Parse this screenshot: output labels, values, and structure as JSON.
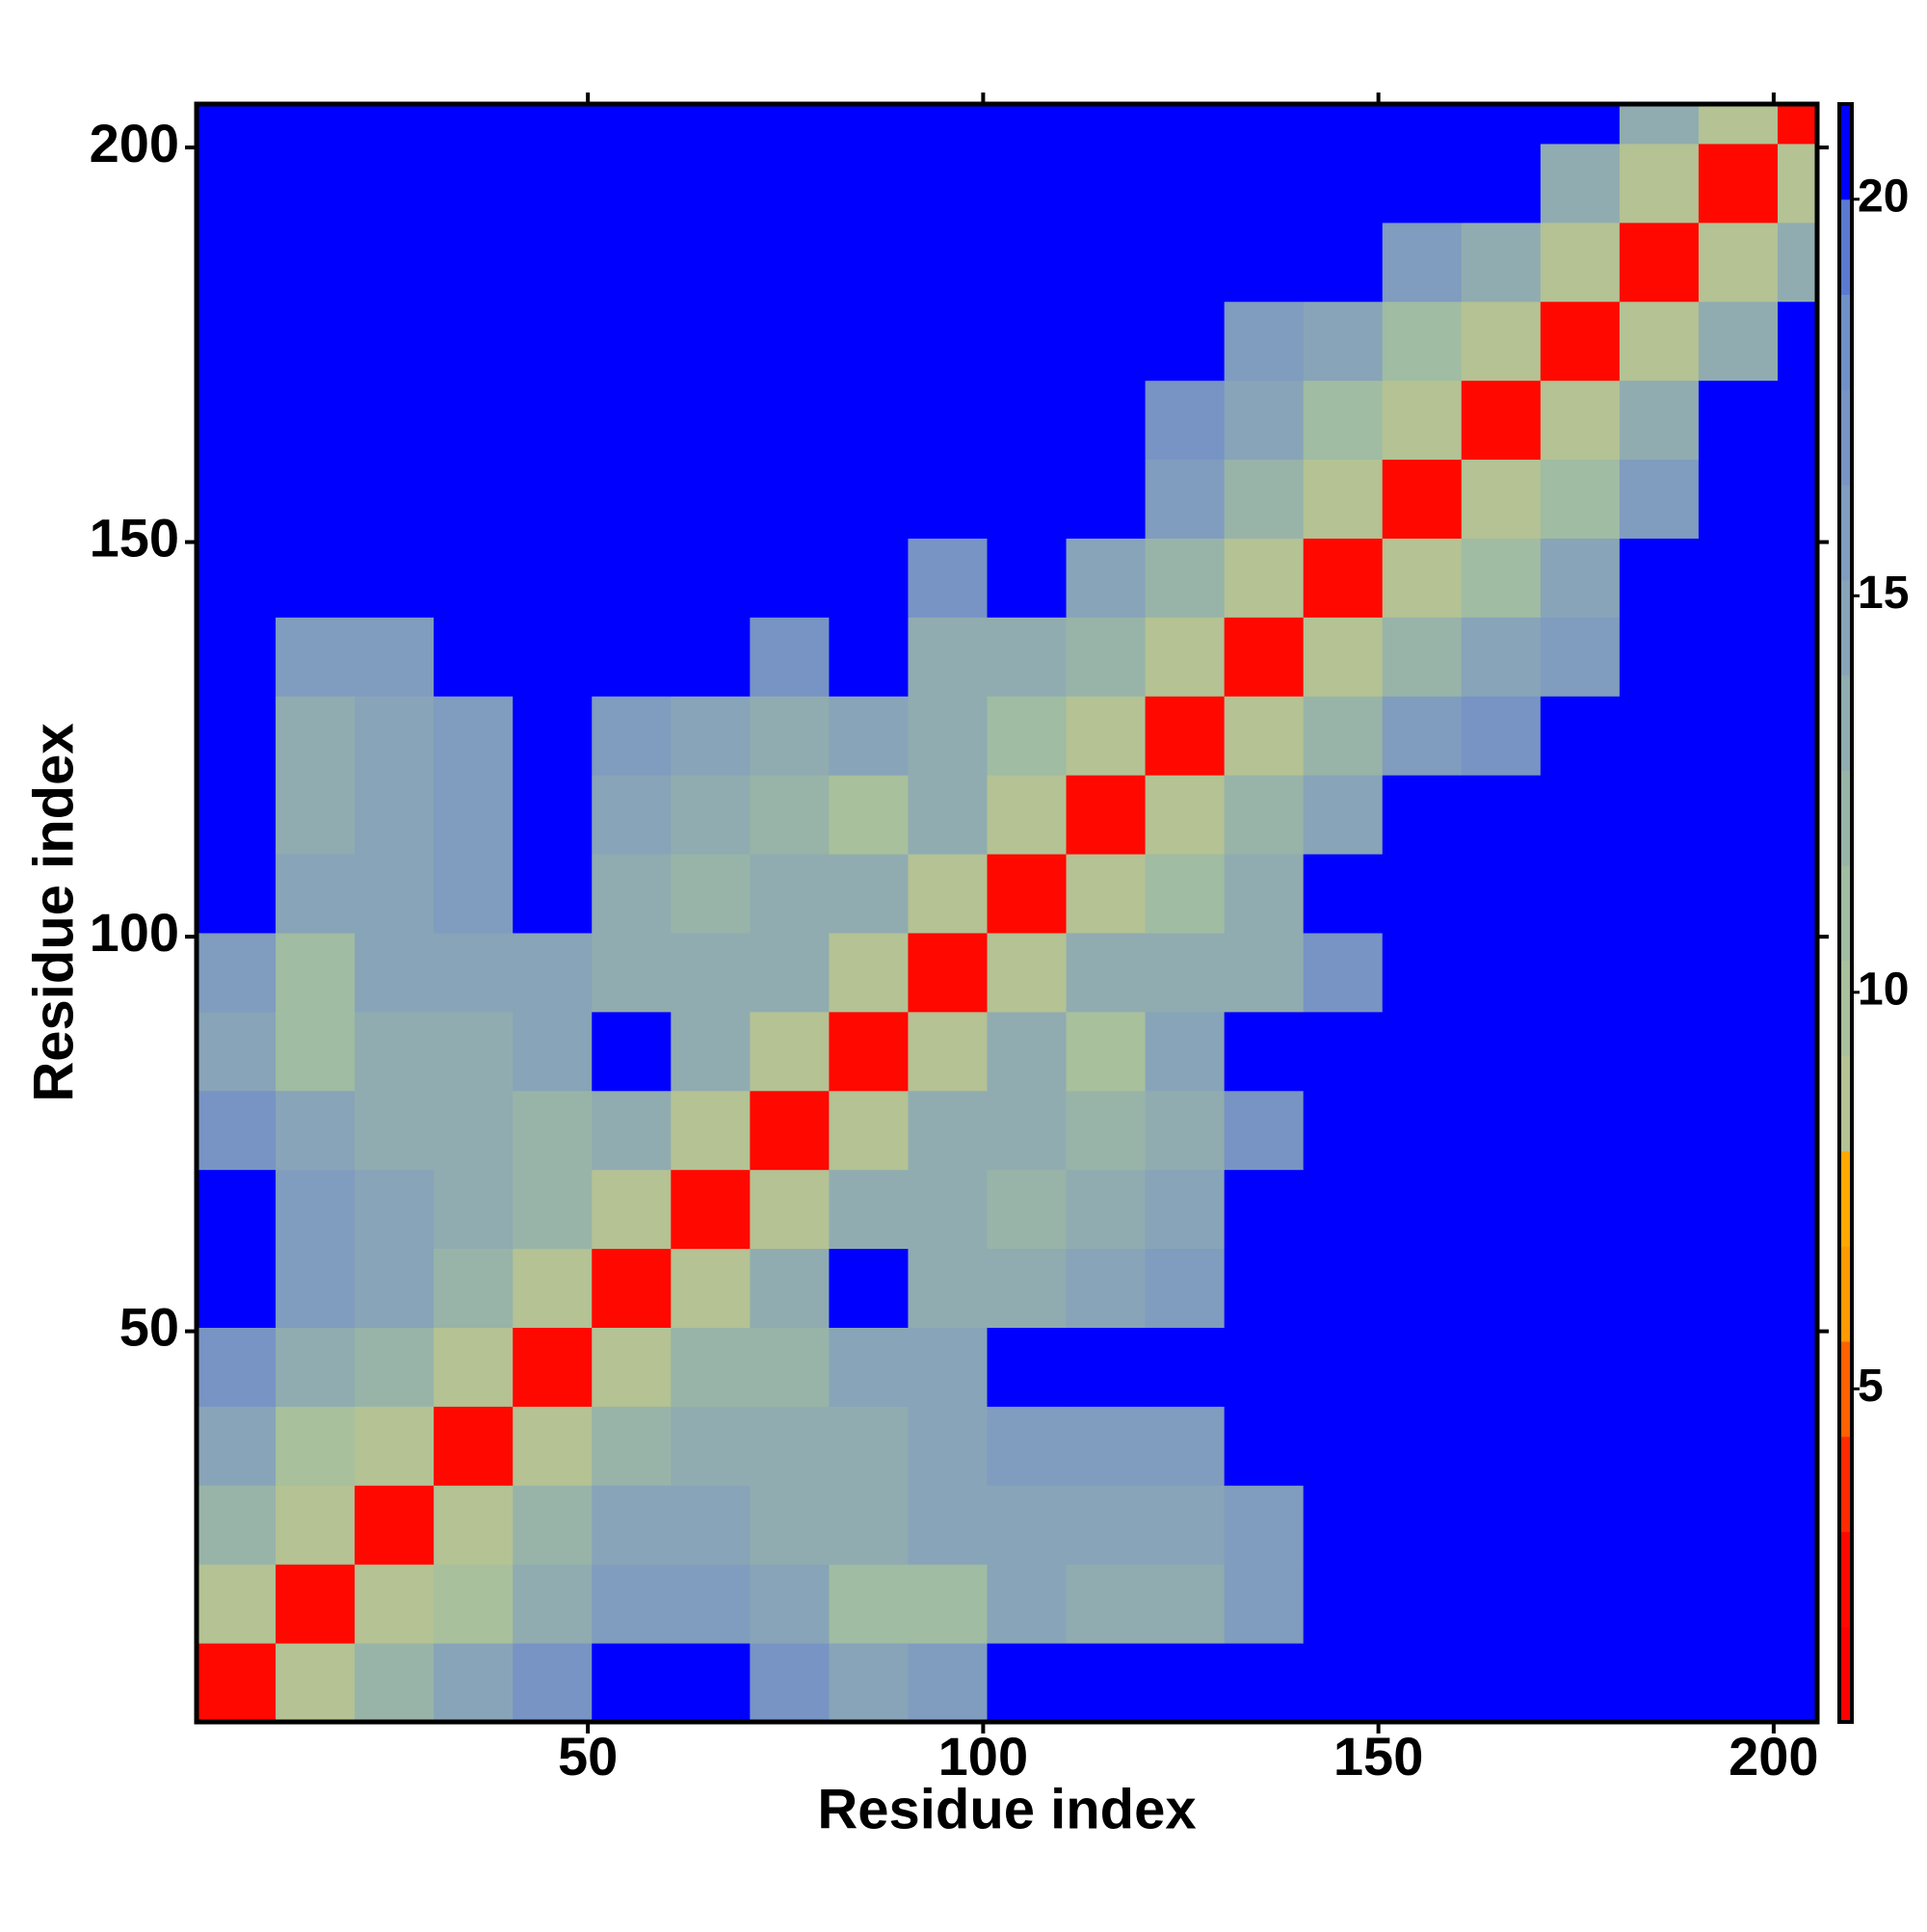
{
  "chart_data": {
    "type": "heatmap",
    "x_label": "Residue index",
    "y_label": "Residue index",
    "xlim": [
      0.5,
      205.5
    ],
    "ylim": [
      0.5,
      205.5
    ],
    "xticks": [
      50,
      100,
      150,
      200
    ],
    "yticks": [
      50,
      100,
      150,
      200
    ],
    "x_edges": [
      0.5,
      10.5,
      20.5,
      30.5,
      40.5,
      50.5,
      60.5,
      70.5,
      80.5,
      90.5,
      100.5,
      110.5,
      120.5,
      130.5,
      140.5,
      150.5,
      160.5,
      170.5,
      180.5,
      190.5,
      200.5,
      205.5
    ],
    "y_edges": [
      0.5,
      10.5,
      20.5,
      30.5,
      40.5,
      50.5,
      60.5,
      70.5,
      80.5,
      90.5,
      100.5,
      110.5,
      120.5,
      130.5,
      140.5,
      150.5,
      160.5,
      170.5,
      180.5,
      190.5,
      200.5,
      205.5
    ],
    "zlim": [
      0.8,
      21.2
    ],
    "zticks": [
      5,
      10,
      15,
      20
    ],
    "colorscale": [
      "#ff0000",
      "#ff0800",
      "#ff2a00",
      "#ff6000",
      "#ff9a00",
      "#ffa800",
      "#b4c294",
      "#a8c09c",
      "#a0bca2",
      "#98b4a8",
      "#90acb0",
      "#88a4b8",
      "#809cbe",
      "#7894c4",
      "#7090c8",
      "#5a7ad2",
      "#0000ff"
    ],
    "values": [
      [
        3,
        9,
        12,
        14,
        17,
        21,
        21,
        17,
        15,
        16,
        21,
        21,
        21,
        21,
        21,
        21,
        21,
        21,
        21,
        21,
        21
      ],
      [
        9,
        3,
        9,
        10,
        13,
        16,
        16,
        14,
        11,
        11,
        14,
        13,
        13,
        16,
        21,
        21,
        21,
        21,
        21,
        21,
        21
      ],
      [
        12,
        9,
        3,
        9,
        12,
        15,
        14,
        13,
        13,
        14,
        15,
        15,
        14,
        16,
        21,
        21,
        21,
        21,
        21,
        21,
        21
      ],
      [
        14,
        10,
        9,
        3,
        9,
        12,
        13,
        13,
        13,
        14,
        16,
        16,
        16,
        21,
        21,
        21,
        21,
        21,
        21,
        21,
        21
      ],
      [
        17,
        13,
        12,
        9,
        3,
        9,
        12,
        12,
        14,
        15,
        21,
        21,
        21,
        21,
        21,
        21,
        21,
        21,
        21,
        21,
        21
      ],
      [
        21,
        16,
        15,
        12,
        9,
        3,
        9,
        13,
        21,
        13,
        13,
        14,
        16,
        21,
        21,
        21,
        21,
        21,
        21,
        21,
        21
      ],
      [
        21,
        16,
        14,
        13,
        12,
        9,
        3,
        9,
        13,
        13,
        12,
        13,
        15,
        21,
        21,
        21,
        21,
        21,
        21,
        21,
        21
      ],
      [
        17,
        14,
        13,
        13,
        12,
        13,
        9,
        3,
        9,
        13,
        13,
        12,
        13,
        17,
        21,
        21,
        21,
        21,
        21,
        21,
        21
      ],
      [
        15,
        11,
        13,
        13,
        14,
        21,
        13,
        9,
        3,
        9,
        13,
        10,
        14,
        21,
        21,
        21,
        21,
        21,
        21,
        21,
        21
      ],
      [
        16,
        11,
        14,
        14,
        15,
        13,
        13,
        13,
        9,
        3,
        9,
        13,
        13,
        13,
        17,
        21,
        21,
        21,
        21,
        21,
        21
      ],
      [
        21,
        14,
        15,
        16,
        21,
        13,
        12,
        13,
        13,
        9,
        3,
        9,
        11,
        13,
        21,
        21,
        21,
        21,
        21,
        21,
        21
      ],
      [
        21,
        13,
        15,
        16,
        21,
        14,
        13,
        12,
        10,
        13,
        9,
        3,
        9,
        12,
        14,
        21,
        21,
        21,
        21,
        21,
        21
      ],
      [
        21,
        13,
        14,
        16,
        21,
        16,
        15,
        13,
        14,
        13,
        11,
        9,
        3,
        9,
        12,
        16,
        17,
        21,
        21,
        21,
        21
      ],
      [
        21,
        16,
        16,
        21,
        21,
        21,
        21,
        17,
        21,
        13,
        13,
        12,
        9,
        3,
        9,
        12,
        15,
        16,
        21,
        21,
        21
      ],
      [
        21,
        21,
        21,
        21,
        21,
        21,
        21,
        21,
        21,
        17,
        21,
        14,
        12,
        9,
        3,
        9,
        11,
        15,
        21,
        21,
        21
      ],
      [
        21,
        21,
        21,
        21,
        21,
        21,
        21,
        21,
        21,
        21,
        21,
        21,
        16,
        12,
        9,
        3,
        9,
        11,
        16,
        21,
        21
      ],
      [
        21,
        21,
        21,
        21,
        21,
        21,
        21,
        21,
        21,
        21,
        21,
        21,
        17,
        15,
        11,
        9,
        3,
        9,
        13,
        21,
        21
      ],
      [
        21,
        21,
        21,
        21,
        21,
        21,
        21,
        21,
        21,
        21,
        21,
        21,
        21,
        16,
        15,
        11,
        9,
        3,
        9,
        13,
        21
      ],
      [
        21,
        21,
        21,
        21,
        21,
        21,
        21,
        21,
        21,
        21,
        21,
        21,
        21,
        21,
        21,
        16,
        13,
        9,
        3,
        9,
        13
      ],
      [
        21,
        21,
        21,
        21,
        21,
        21,
        21,
        21,
        21,
        21,
        21,
        21,
        21,
        21,
        21,
        21,
        21,
        13,
        9,
        3,
        9
      ],
      [
        21,
        21,
        21,
        21,
        21,
        21,
        21,
        21,
        21,
        21,
        21,
        21,
        21,
        21,
        21,
        21,
        21,
        21,
        13,
        9,
        3
      ]
    ]
  }
}
